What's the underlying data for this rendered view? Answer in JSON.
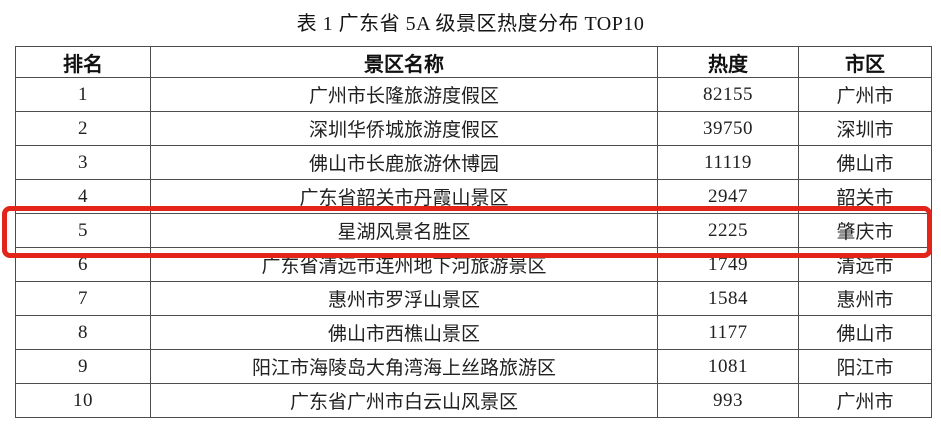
{
  "title": "表 1 广东省 5A 级景区热度分布 TOP10",
  "table": {
    "headers": [
      "排名",
      "景区名称",
      "热度",
      "市区"
    ],
    "rows": [
      {
        "rank": "1",
        "name": "广州市长隆旅游度假区",
        "heat": "82155",
        "city": "广州市"
      },
      {
        "rank": "2",
        "name": "深圳华侨城旅游度假区",
        "heat": "39750",
        "city": "深圳市"
      },
      {
        "rank": "3",
        "name": "佛山市长鹿旅游休博园",
        "heat": "11119",
        "city": "佛山市"
      },
      {
        "rank": "4",
        "name": "广东省韶关市丹霞山景区",
        "heat": "2947",
        "city": "韶关市"
      },
      {
        "rank": "5",
        "name": "星湖风景名胜区",
        "heat": "2225",
        "city": "肇庆市"
      },
      {
        "rank": "6",
        "name": "广东省清远市连州地下河旅游景区",
        "heat": "1749",
        "city": "清远市"
      },
      {
        "rank": "7",
        "name": "惠州市罗浮山景区",
        "heat": "1584",
        "city": "惠州市"
      },
      {
        "rank": "8",
        "name": "佛山市西樵山景区",
        "heat": "1177",
        "city": "佛山市"
      },
      {
        "rank": "9",
        "name": "阳江市海陵岛大角湾海上丝路旅游区",
        "heat": "1081",
        "city": "阳江市"
      },
      {
        "rank": "10",
        "name": "广东省广州市白云山风景区",
        "heat": "993",
        "city": "广州市"
      }
    ],
    "highlight": {
      "highlighted_rank": "5",
      "highlighted_name": "星湖风景名胜区",
      "box_color": "#e2241b"
    }
  }
}
